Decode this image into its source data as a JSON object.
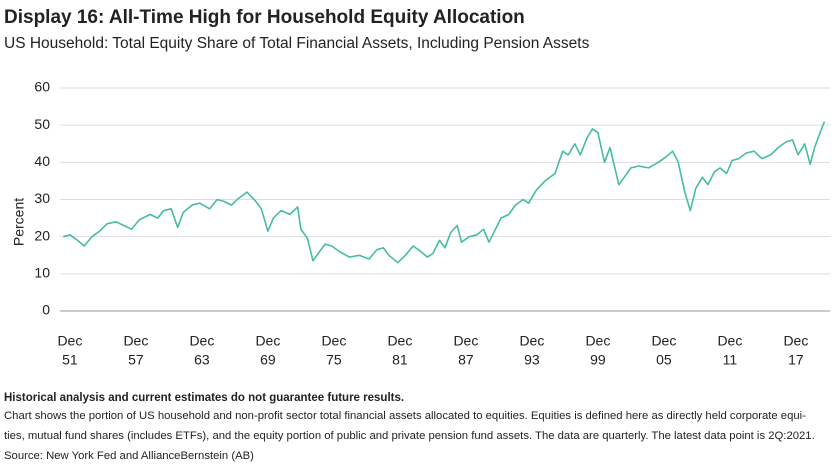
{
  "chart_data": {
    "type": "line",
    "title": "Display 16: All-Time High for Household Equity Allocation",
    "subtitle": "US Household: Total Equity Share of Total Financial Assets, Including Pension Assets",
    "y_label": "Percent",
    "xlim": [
      1951,
      2021
    ],
    "xticks": [
      {
        "value": 1951.9,
        "label": [
          "Dec",
          "51"
        ]
      },
      {
        "value": 1957.9,
        "label": [
          "Dec",
          "57"
        ]
      },
      {
        "value": 1963.9,
        "label": [
          "Dec",
          "63"
        ]
      },
      {
        "value": 1969.9,
        "label": [
          "Dec",
          "69"
        ]
      },
      {
        "value": 1975.9,
        "label": [
          "Dec",
          "75"
        ]
      },
      {
        "value": 1981.9,
        "label": [
          "Dec",
          "81"
        ]
      },
      {
        "value": 1987.9,
        "label": [
          "Dec",
          "87"
        ]
      },
      {
        "value": 1993.9,
        "label": [
          "Dec",
          "93"
        ]
      },
      {
        "value": 1999.9,
        "label": [
          "Dec",
          "99"
        ]
      },
      {
        "value": 2005.9,
        "label": [
          "Dec",
          "05"
        ]
      },
      {
        "value": 2011.9,
        "label": [
          "Dec",
          "11"
        ]
      },
      {
        "value": 2017.9,
        "label": [
          "Dec",
          "17"
        ]
      }
    ],
    "ylim": [
      0,
      60
    ],
    "yticks": [
      0,
      10,
      20,
      30,
      40,
      50,
      60
    ],
    "grid": true,
    "series": [
      {
        "name": "Equity share",
        "color": "#45bca4",
        "x": [
          1951.3,
          1951.9,
          1952.6,
          1953.2,
          1953.9,
          1954.6,
          1955.3,
          1956.1,
          1956.8,
          1957.5,
          1958.2,
          1959.2,
          1959.9,
          1960.4,
          1961.1,
          1961.7,
          1962.2,
          1963.0,
          1963.7,
          1964.6,
          1965.3,
          1965.9,
          1966.6,
          1967.1,
          1968.0,
          1968.8,
          1969.3,
          1969.9,
          1970.4,
          1971.1,
          1971.9,
          1972.6,
          1972.9,
          1973.5,
          1974.0,
          1974.6,
          1975.1,
          1975.7,
          1976.4,
          1977.3,
          1978.2,
          1979.1,
          1979.8,
          1980.4,
          1980.9,
          1981.7,
          1982.4,
          1983.1,
          1983.8,
          1984.4,
          1984.9,
          1985.5,
          1986.0,
          1986.5,
          1987.1,
          1987.5,
          1988.2,
          1988.9,
          1989.5,
          1990.0,
          1990.5,
          1991.1,
          1991.8,
          1992.4,
          1993.1,
          1993.6,
          1994.3,
          1995.1,
          1996.0,
          1996.7,
          1997.2,
          1997.8,
          1998.3,
          1998.9,
          1999.4,
          1999.9,
          2000.5,
          2001.0,
          2001.8,
          2002.3,
          2002.9,
          2003.6,
          2004.5,
          2005.4,
          2006.1,
          2006.7,
          2007.2,
          2007.8,
          2008.3,
          2008.8,
          2009.4,
          2009.9,
          2010.5,
          2011.0,
          2011.6,
          2012.1,
          2012.7,
          2013.4,
          2014.1,
          2014.8,
          2015.6,
          2016.3,
          2017.0,
          2017.6,
          2018.1,
          2018.7,
          2019.2,
          2019.6,
          2020.1,
          2020.5
        ],
        "values": [
          20,
          20.5,
          19,
          17.5,
          20,
          21.5,
          23.5,
          24,
          23,
          22,
          24.5,
          26,
          25,
          27,
          27.5,
          22.5,
          26.5,
          28.5,
          29,
          27.5,
          30,
          29.5,
          28.5,
          30,
          32,
          29.5,
          27.5,
          21.5,
          25,
          27,
          26,
          28,
          22,
          19.5,
          13.5,
          16,
          18,
          17.5,
          16,
          14.5,
          15,
          14,
          16.5,
          17,
          15,
          13,
          15,
          17.5,
          16,
          14.5,
          15.5,
          19,
          17,
          21,
          23,
          18.5,
          20,
          20.5,
          22,
          18.5,
          21.5,
          25,
          26,
          28.5,
          30,
          29,
          32.5,
          35,
          37,
          43,
          42,
          45,
          42,
          46.5,
          49,
          48,
          40,
          44,
          34,
          36,
          38.5,
          39,
          38.5,
          40,
          41.5,
          43,
          40,
          32,
          27,
          33,
          36,
          34,
          37.5,
          38.5,
          37,
          40.5,
          41,
          42.5,
          43,
          41,
          42,
          44,
          45.5,
          46,
          42,
          45,
          39.5,
          44,
          48,
          51
        ]
      }
    ]
  },
  "footer": {
    "disclaimer": "Historical analysis and current estimates do not guarantee future results.",
    "notes": [
      "Chart shows the portion of US household and non-profit sector total financial assets allocated to equities. Equities is defined here as directly held corporate equi-",
      "ties, mutual fund shares (includes ETFs), and the equity portion of public and private pension fund assets. The data are quarterly. The latest data point is 2Q:2021.",
      "Source: New York Fed and AllianceBernstein (AB)"
    ]
  }
}
